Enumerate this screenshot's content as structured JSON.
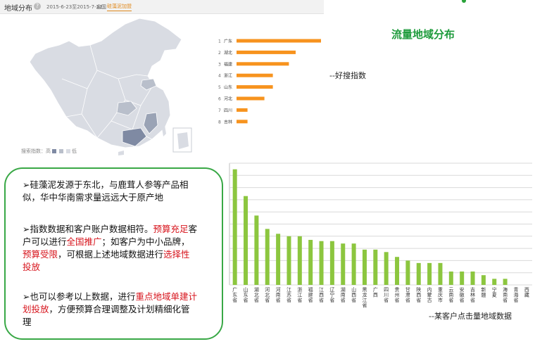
{
  "header": {
    "title": "地域分布",
    "help_icon": "?",
    "date_range": "2015-6-23至2015-7-22",
    "scope": "全国",
    "tab": "硅藻泥加盟"
  },
  "map": {
    "legend_prefix": "搜索指数：",
    "legend_high": "高",
    "legend_low": "低",
    "colors": {
      "base": "#d9dce3",
      "mid": "#b9bfcb",
      "high": "#9aa3b5",
      "top": "#7f8aa3"
    }
  },
  "title": "流量地域分布",
  "ranking": {
    "caption": "--好搜指数",
    "bar_color": "#f7931e",
    "items": [
      {
        "rank": "1",
        "name": "广东",
        "value": 100
      },
      {
        "rank": "2",
        "name": "湖北",
        "value": 70
      },
      {
        "rank": "3",
        "name": "福建",
        "value": 62
      },
      {
        "rank": "4",
        "name": "浙江",
        "value": 43
      },
      {
        "rank": "5",
        "name": "山东",
        "value": 43
      },
      {
        "rank": "6",
        "name": "河北",
        "value": 33
      },
      {
        "rank": "7",
        "name": "四川",
        "value": 13
      },
      {
        "rank": "8",
        "name": "吉林",
        "value": 13
      }
    ]
  },
  "notes": {
    "n1": "➢硅藻泥发源于东北，与鹿茸人参等产品相似，华中华南需求量远远大于原产地",
    "n2_a": "➢指数数据和客户账户数据相符。",
    "n2_b": "预算充足",
    "n2_c": "客户可以进行",
    "n2_d": "全国推广",
    "n2_e": "；如客户为中小品牌，",
    "n2_f": "预算受限",
    "n2_g": "，可根据上述地域数据进行",
    "n2_h": "选择性投放",
    "n3_a": "➢也可以参考以上数据，进行",
    "n3_b": "重点地域单建计划投放",
    "n3_c": "，方便预算合理调整及计划精细化管理"
  },
  "chart_data": {
    "type": "bar",
    "caption": "--某客户点击量地域数据",
    "color": "#8cc63f",
    "grid": true,
    "ylim": [
      0,
      100
    ],
    "categories": [
      "广东省",
      "山东省",
      "湖北省",
      "河北省",
      "河南省",
      "江苏省",
      "浙江省",
      "福建省",
      "江西省",
      "辽宁省",
      "湖南省",
      "山西省",
      "黑龙江省",
      "广西",
      "四川省",
      "贵州省",
      "甘肃省",
      "陕西省",
      "内蒙古",
      "重庆市",
      "云南省",
      "安徽省",
      "吉林省",
      "新疆",
      "宁夏",
      "海南省",
      "青海省",
      "西藏"
    ],
    "values": [
      95,
      73,
      57,
      46,
      42,
      40,
      40,
      37,
      36,
      36,
      34,
      34,
      29,
      29,
      27,
      23,
      20,
      18,
      18,
      18,
      11,
      11,
      11,
      8,
      5,
      5,
      0,
      0
    ]
  }
}
